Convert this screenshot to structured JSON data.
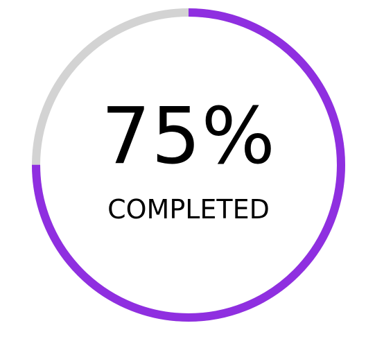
{
  "progress": {
    "value_text": "75%",
    "fraction": 0.75,
    "label": "COMPLETED"
  },
  "colors": {
    "progress": "#8f2fe0",
    "track": "#d3d3d3",
    "text": "#000000",
    "background": "#ffffff"
  }
}
